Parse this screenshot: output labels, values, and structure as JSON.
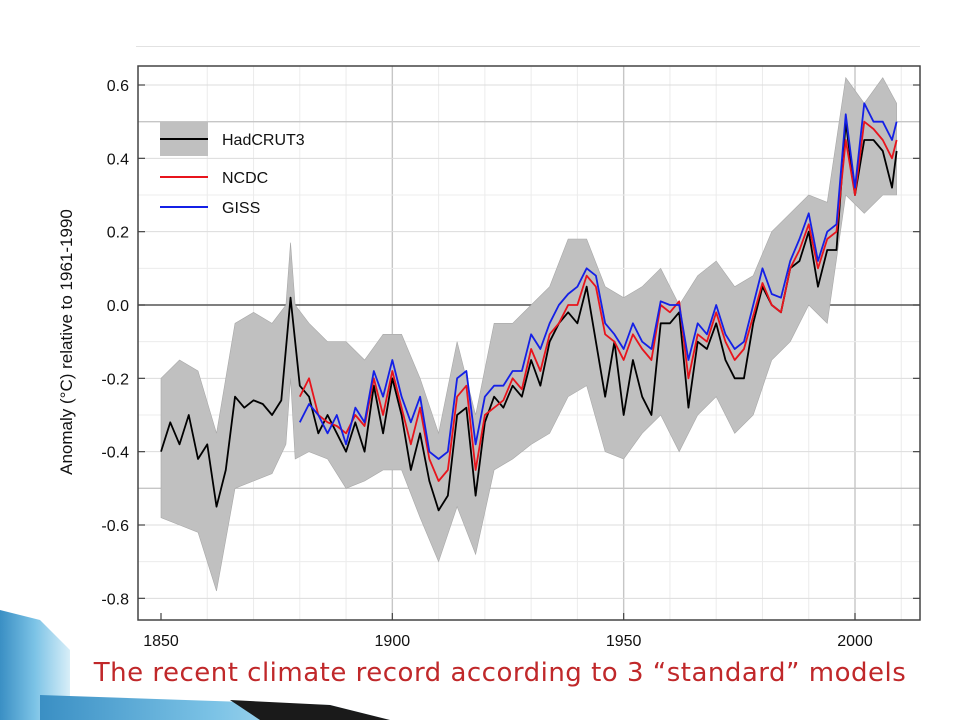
{
  "caption": "The recent climate record according to 3 “standard” models",
  "colors": {
    "hadcrut3": "#000000",
    "ncdc": "#e8141c",
    "giss": "#1420e6",
    "uncertainty_band": "#c0c0c0",
    "caption": "#c0282a",
    "decoration": "#6fb6dc"
  },
  "chart_data": {
    "type": "line",
    "title": "",
    "xlabel": "",
    "ylabel": "Anomaly (°C) relative to 1961-1990",
    "xlim": [
      1848,
      2012
    ],
    "ylim": [
      -0.85,
      0.65
    ],
    "xticks": [
      1850,
      1900,
      1950,
      2000
    ],
    "yticks": [
      -0.8,
      -0.6,
      -0.4,
      -0.2,
      0.0,
      0.2,
      0.4,
      0.6
    ],
    "ytick_labels": [
      "-0.8",
      "-0.6",
      "-0.4",
      "-0.2",
      "0.0",
      "0.2",
      "0.4",
      "0.6"
    ],
    "grid": true,
    "legend_position": "top-left",
    "series": [
      {
        "name": "HadCRUT3",
        "x": [
          1850,
          1852,
          1854,
          1856,
          1858,
          1860,
          1862,
          1864,
          1866,
          1868,
          1870,
          1872,
          1874,
          1876,
          1878,
          1880,
          1882,
          1884,
          1886,
          1888,
          1890,
          1892,
          1894,
          1896,
          1898,
          1900,
          1902,
          1904,
          1906,
          1908,
          1910,
          1912,
          1914,
          1916,
          1918,
          1920,
          1922,
          1924,
          1926,
          1928,
          1930,
          1932,
          1934,
          1936,
          1938,
          1940,
          1942,
          1944,
          1946,
          1948,
          1950,
          1952,
          1954,
          1956,
          1958,
          1960,
          1962,
          1964,
          1966,
          1968,
          1970,
          1972,
          1974,
          1976,
          1978,
          1980,
          1982,
          1984,
          1986,
          1988,
          1990,
          1992,
          1994,
          1996,
          1998,
          2000,
          2002,
          2004,
          2006,
          2008,
          2009
        ],
        "values": [
          -0.4,
          -0.32,
          -0.38,
          -0.3,
          -0.42,
          -0.38,
          -0.55,
          -0.45,
          -0.25,
          -0.28,
          -0.26,
          -0.27,
          -0.3,
          -0.26,
          0.02,
          -0.22,
          -0.25,
          -0.35,
          -0.3,
          -0.35,
          -0.4,
          -0.32,
          -0.4,
          -0.22,
          -0.35,
          -0.2,
          -0.3,
          -0.45,
          -0.35,
          -0.48,
          -0.56,
          -0.52,
          -0.3,
          -0.28,
          -0.52,
          -0.32,
          -0.25,
          -0.28,
          -0.22,
          -0.25,
          -0.15,
          -0.22,
          -0.1,
          -0.05,
          -0.02,
          -0.05,
          0.05,
          -0.1,
          -0.25,
          -0.1,
          -0.3,
          -0.15,
          -0.25,
          -0.3,
          -0.05,
          -0.05,
          -0.02,
          -0.28,
          -0.1,
          -0.12,
          -0.05,
          -0.15,
          -0.2,
          -0.2,
          -0.05,
          0.05,
          0.0,
          -0.02,
          0.1,
          0.12,
          0.2,
          0.05,
          0.15,
          0.15,
          0.5,
          0.3,
          0.45,
          0.45,
          0.42,
          0.32,
          0.42
        ]
      },
      {
        "name": "NCDC",
        "x": [
          1880,
          1882,
          1884,
          1886,
          1888,
          1890,
          1892,
          1894,
          1896,
          1898,
          1900,
          1902,
          1904,
          1906,
          1908,
          1910,
          1912,
          1914,
          1916,
          1918,
          1920,
          1922,
          1924,
          1926,
          1928,
          1930,
          1932,
          1934,
          1936,
          1938,
          1940,
          1942,
          1944,
          1946,
          1948,
          1950,
          1952,
          1954,
          1956,
          1958,
          1960,
          1962,
          1964,
          1966,
          1968,
          1970,
          1972,
          1974,
          1976,
          1978,
          1980,
          1982,
          1984,
          1986,
          1988,
          1990,
          1992,
          1994,
          1996,
          1998,
          2000,
          2002,
          2004,
          2006,
          2008,
          2009
        ],
        "values": [
          -0.25,
          -0.2,
          -0.3,
          -0.32,
          -0.33,
          -0.35,
          -0.3,
          -0.33,
          -0.2,
          -0.3,
          -0.18,
          -0.28,
          -0.38,
          -0.28,
          -0.42,
          -0.48,
          -0.45,
          -0.25,
          -0.22,
          -0.45,
          -0.3,
          -0.28,
          -0.26,
          -0.2,
          -0.23,
          -0.12,
          -0.18,
          -0.08,
          -0.05,
          0.0,
          0.0,
          0.08,
          0.05,
          -0.08,
          -0.1,
          -0.15,
          -0.08,
          -0.12,
          -0.15,
          0.0,
          -0.02,
          0.01,
          -0.2,
          -0.08,
          -0.1,
          -0.02,
          -0.1,
          -0.15,
          -0.12,
          -0.03,
          0.06,
          0.0,
          -0.02,
          0.1,
          0.15,
          0.22,
          0.1,
          0.18,
          0.2,
          0.45,
          0.3,
          0.5,
          0.48,
          0.45,
          0.4,
          0.45
        ]
      },
      {
        "name": "GISS",
        "x": [
          1880,
          1882,
          1884,
          1886,
          1888,
          1890,
          1892,
          1894,
          1896,
          1898,
          1900,
          1902,
          1904,
          1906,
          1908,
          1910,
          1912,
          1914,
          1916,
          1918,
          1920,
          1922,
          1924,
          1926,
          1928,
          1930,
          1932,
          1934,
          1936,
          1938,
          1940,
          1942,
          1944,
          1946,
          1948,
          1950,
          1952,
          1954,
          1956,
          1958,
          1960,
          1962,
          1964,
          1966,
          1968,
          1970,
          1972,
          1974,
          1976,
          1978,
          1980,
          1982,
          1984,
          1986,
          1988,
          1990,
          1992,
          1994,
          1996,
          1998,
          2000,
          2002,
          2004,
          2006,
          2008,
          2009
        ],
        "values": [
          -0.32,
          -0.27,
          -0.3,
          -0.35,
          -0.3,
          -0.38,
          -0.28,
          -0.32,
          -0.18,
          -0.25,
          -0.15,
          -0.25,
          -0.32,
          -0.25,
          -0.4,
          -0.42,
          -0.4,
          -0.2,
          -0.18,
          -0.38,
          -0.25,
          -0.22,
          -0.22,
          -0.18,
          -0.18,
          -0.08,
          -0.12,
          -0.05,
          0.0,
          0.03,
          0.05,
          0.1,
          0.08,
          -0.05,
          -0.08,
          -0.12,
          -0.05,
          -0.1,
          -0.12,
          0.01,
          0.0,
          0.0,
          -0.15,
          -0.05,
          -0.08,
          0.0,
          -0.08,
          -0.12,
          -0.1,
          0.0,
          0.1,
          0.03,
          0.02,
          0.12,
          0.18,
          0.25,
          0.12,
          0.2,
          0.22,
          0.52,
          0.32,
          0.55,
          0.5,
          0.5,
          0.45,
          0.5
        ]
      }
    ],
    "uncertainty": {
      "x": [
        1850,
        1854,
        1858,
        1862,
        1866,
        1870,
        1874,
        1877,
        1878,
        1879,
        1882,
        1886,
        1890,
        1894,
        1898,
        1902,
        1906,
        1910,
        1914,
        1918,
        1922,
        1926,
        1930,
        1934,
        1938,
        1942,
        1946,
        1950,
        1954,
        1958,
        1962,
        1966,
        1970,
        1974,
        1978,
        1982,
        1986,
        1990,
        1994,
        1998,
        2002,
        2006,
        2009
      ],
      "lower": [
        -0.58,
        -0.6,
        -0.62,
        -0.78,
        -0.5,
        -0.48,
        -0.46,
        -0.38,
        -0.2,
        -0.42,
        -0.4,
        -0.42,
        -0.5,
        -0.48,
        -0.45,
        -0.45,
        -0.58,
        -0.7,
        -0.55,
        -0.68,
        -0.45,
        -0.42,
        -0.38,
        -0.35,
        -0.25,
        -0.22,
        -0.4,
        -0.42,
        -0.35,
        -0.3,
        -0.4,
        -0.3,
        -0.25,
        -0.35,
        -0.3,
        -0.15,
        -0.1,
        0.0,
        -0.05,
        0.3,
        0.25,
        0.3,
        0.3
      ],
      "upper": [
        -0.2,
        -0.15,
        -0.18,
        -0.35,
        -0.05,
        -0.02,
        -0.05,
        0.0,
        0.17,
        0.0,
        -0.05,
        -0.1,
        -0.1,
        -0.15,
        -0.08,
        -0.08,
        -0.2,
        -0.35,
        -0.1,
        -0.3,
        -0.05,
        -0.05,
        0.0,
        0.05,
        0.18,
        0.18,
        0.05,
        0.02,
        0.05,
        0.1,
        0.0,
        0.08,
        0.12,
        0.05,
        0.08,
        0.2,
        0.25,
        0.3,
        0.28,
        0.62,
        0.55,
        0.62,
        0.55
      ]
    }
  }
}
